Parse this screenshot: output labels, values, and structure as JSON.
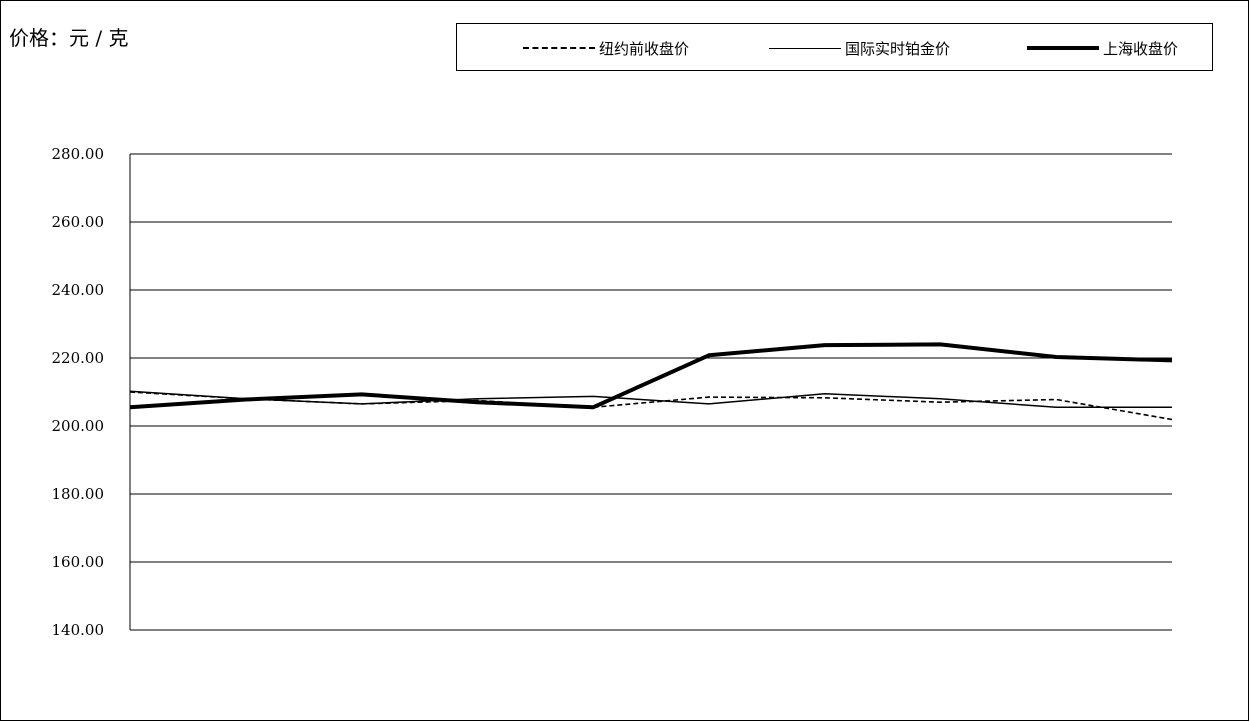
{
  "chart_data": {
    "type": "line",
    "unit_label": "价格：元 / 克",
    "ylim": [
      140,
      280
    ],
    "yticks": [
      "280.00",
      "260.00",
      "240.00",
      "220.00",
      "200.00",
      "180.00",
      "160.00",
      "140.00"
    ],
    "grid": true,
    "legend_position": "top-right",
    "x": [
      1,
      2,
      3,
      4,
      5,
      6,
      7,
      8,
      9,
      10
    ],
    "series": [
      {
        "name": "纽约前收盘价",
        "style": "dashed",
        "color": "#000000",
        "values": [
          210.0,
          208.0,
          206.5,
          207.5,
          205.5,
          208.5,
          208.3,
          207.0,
          207.8,
          201.9
        ]
      },
      {
        "name": "国际实时铂金价",
        "style": "thin",
        "color": "#000000",
        "values": [
          210.2,
          208.0,
          206.5,
          208.0,
          208.7,
          206.5,
          209.5,
          208.0,
          205.5,
          205.5
        ]
      },
      {
        "name": "上海收盘价",
        "style": "thick",
        "color": "#000000",
        "values": [
          205.5,
          207.8,
          209.3,
          207.0,
          205.5,
          220.8,
          223.8,
          224.0,
          220.3,
          219.3
        ]
      }
    ]
  }
}
